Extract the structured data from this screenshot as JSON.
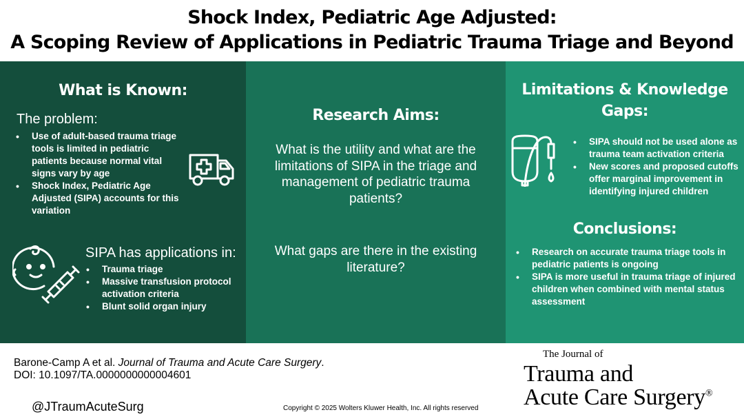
{
  "title": {
    "line1": "Shock Index, Pediatric Age Adjusted:",
    "line2": "A Scoping Review of Applications in Pediatric Trauma Triage and Beyond"
  },
  "left_panel": {
    "heading": "What is Known:",
    "problem_heading": "The problem:",
    "problem_items": [
      "Use of adult-based trauma triage tools is limited in pediatric patients because normal vital signs vary by age",
      "Shock Index, Pediatric Age Adjusted (SIPA) accounts for this variation"
    ],
    "applications_heading": "SIPA has applications in:",
    "applications_items": [
      "Trauma triage",
      "Massive transfusion protocol activation criteria",
      "Blunt solid organ injury"
    ],
    "icons": [
      "ambulance-icon",
      "baby-syringe-icon"
    ]
  },
  "middle_panel": {
    "heading": "Research Aims:",
    "question1": "What is the utility and what are the limitations of SIPA in the triage and management of pediatric trauma patients?",
    "question2": "What gaps are there in the existing literature?"
  },
  "right_panel": {
    "heading_line1": "Limitations & Knowledge",
    "heading_line2": "Gaps:",
    "limitations_items": [
      "SIPA should not be used alone as trauma team activation criteria",
      "New scores and proposed cutoffs offer marginal improvement in identifying injured children"
    ],
    "conclusions_heading": "Conclusions:",
    "conclusions_items": [
      "Research on accurate trauma triage tools in pediatric patients is ongoing",
      "SIPA is more useful in trauma triage of injured children when combined with mental status assessment"
    ],
    "icons": [
      "iv-bag-icon"
    ]
  },
  "footer": {
    "authors": "Barone-Camp A et al. ",
    "journal_name": "Journal of Trauma and Acute Care Surgery",
    "period": ".",
    "doi": "DOI: 10.1097/TA.0000000000004601",
    "handle": "@JTraumAcuteSurg",
    "copyright": "Copyright © 2025  Wolters Kluwer Health, Inc. All rights reserved"
  },
  "logo": {
    "small": "The Journal of",
    "line1": "Trauma and",
    "line2": "Acute Care Surgery",
    "mark": "®"
  },
  "colors": {
    "left_panel": "#144e3c",
    "middle_panel": "#197257",
    "right_panel": "#1f9473",
    "text_on_panels": "#ffffff"
  }
}
